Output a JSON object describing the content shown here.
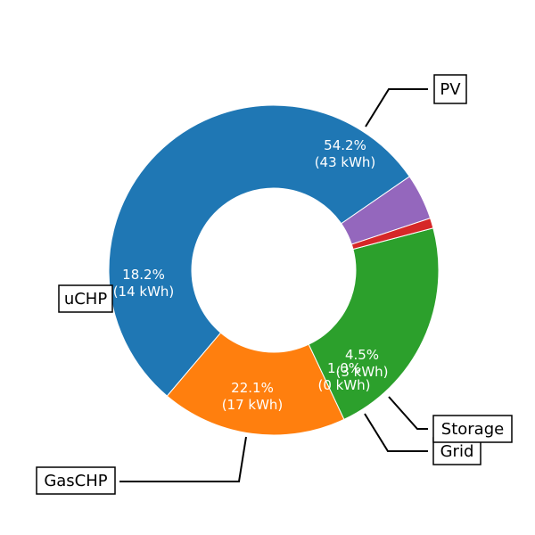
{
  "chart_data": {
    "type": "pie",
    "style": "donut",
    "slices": [
      {
        "label": "PV",
        "percent": 54.2,
        "value_kwh": 43,
        "pct_text": "54.2%",
        "val_text": "(43 kWh)",
        "color": "#1f77b4"
      },
      {
        "label": "uCHP",
        "percent": 18.2,
        "value_kwh": 14,
        "pct_text": "18.2%",
        "val_text": "(14 kWh)",
        "color": "#ff7f0e"
      },
      {
        "label": "GasCHP",
        "percent": 22.1,
        "value_kwh": 17,
        "pct_text": "22.1%",
        "val_text": "(17 kWh)",
        "color": "#2ca02c"
      },
      {
        "label": "Grid",
        "percent": 1.0,
        "value_kwh": 0,
        "pct_text": "1.0%",
        "val_text": "(0 kWh)",
        "color": "#d62728"
      },
      {
        "label": "Storage",
        "percent": 4.5,
        "value_kwh": 3,
        "pct_text": "4.5%",
        "val_text": "(3 kWh)",
        "color": "#9467bd"
      }
    ]
  }
}
